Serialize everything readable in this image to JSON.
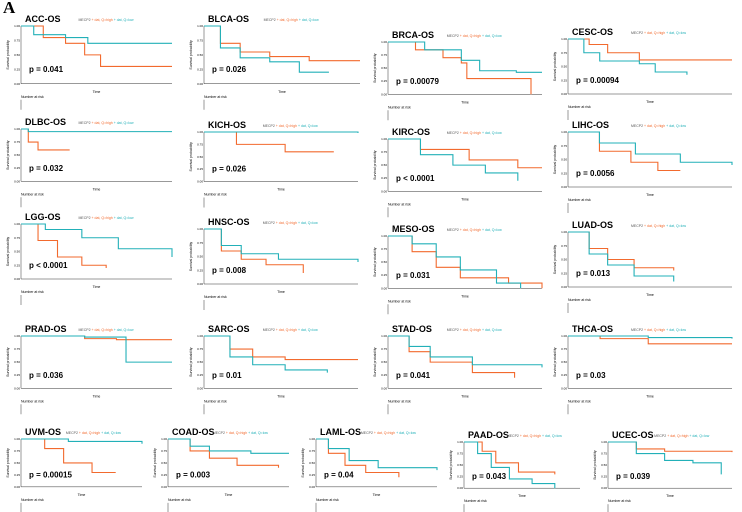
{
  "figure_label": "A",
  "colors": {
    "high": "#f26a2e",
    "low": "#22b0b8"
  },
  "legend": {
    "gene": "MECP2",
    "high": "dat, Q=high",
    "low": "dat, Q=low"
  },
  "axis": {
    "ylabel": "Survival probability",
    "xlabel": "Time",
    "risk_title": "Number at risk",
    "yticks": [
      "0.00",
      "0.25",
      "0.50",
      "0.75",
      "1.00"
    ]
  },
  "chart_data": [
    {
      "type": "line",
      "title": "ACC-OS",
      "p": "p = 0.041",
      "xmax": 4745,
      "high": [
        [
          0,
          1
        ],
        [
          700,
          0.8
        ],
        [
          1400,
          0.7
        ],
        [
          2000,
          0.5
        ],
        [
          2500,
          0.3
        ],
        [
          4745,
          0.3
        ]
      ],
      "low": [
        [
          0,
          1
        ],
        [
          400,
          0.85
        ],
        [
          1400,
          0.8
        ],
        [
          2100,
          0.7
        ],
        [
          4745,
          0.7
        ]
      ]
    },
    {
      "type": "line",
      "title": "BLCA-OS",
      "p": "p = 0.026",
      "xmax": 4745,
      "high": [
        [
          0,
          1
        ],
        [
          500,
          0.7
        ],
        [
          1100,
          0.55
        ],
        [
          2000,
          0.47
        ],
        [
          3200,
          0.4
        ],
        [
          4745,
          0.4
        ]
      ],
      "low": [
        [
          0,
          1
        ],
        [
          500,
          0.62
        ],
        [
          1100,
          0.45
        ],
        [
          2000,
          0.38
        ],
        [
          2900,
          0.2
        ],
        [
          3800,
          0.2
        ]
      ]
    },
    {
      "type": "line",
      "title": "BRCA-OS",
      "p": "p = 0.00079",
      "xmax": 8400,
      "high": [
        [
          0,
          1
        ],
        [
          1500,
          0.85
        ],
        [
          3000,
          0.7
        ],
        [
          4000,
          0.6
        ],
        [
          4300,
          0.3
        ],
        [
          7800,
          0.3
        ],
        [
          7800,
          0
        ]
      ],
      "low": [
        [
          0,
          1
        ],
        [
          2000,
          0.85
        ],
        [
          4000,
          0.65
        ],
        [
          5000,
          0.45
        ],
        [
          7000,
          0.42
        ],
        [
          8400,
          0.42
        ]
      ]
    },
    {
      "type": "line",
      "title": "CESC-OS",
      "p": "p = 0.00094",
      "xmax": 6205,
      "high": [
        [
          0,
          1
        ],
        [
          800,
          0.9
        ],
        [
          1500,
          0.75
        ],
        [
          2700,
          0.62
        ],
        [
          6205,
          0.62
        ]
      ],
      "low": [
        [
          0,
          1
        ],
        [
          600,
          0.75
        ],
        [
          1200,
          0.6
        ],
        [
          2700,
          0.55
        ],
        [
          3300,
          0.4
        ],
        [
          4500,
          0.35
        ]
      ]
    },
    {
      "type": "line",
      "title": "DLBC-OS",
      "p": "p = 0.032",
      "xmax": 6205,
      "high": [
        [
          0,
          1
        ],
        [
          300,
          0.75
        ],
        [
          700,
          0.6
        ],
        [
          2000,
          0.6
        ]
      ],
      "low": [
        [
          0,
          1
        ],
        [
          300,
          0.95
        ],
        [
          6205,
          0.95
        ]
      ]
    },
    {
      "type": "line",
      "title": "KICH-OS",
      "p": "p = 0.026",
      "xmax": 4745,
      "high": [
        [
          0,
          1
        ],
        [
          1000,
          0.75
        ],
        [
          2500,
          0.6
        ],
        [
          4000,
          0.6
        ]
      ],
      "low": [
        [
          0,
          1
        ],
        [
          4745,
          0.98
        ]
      ]
    },
    {
      "type": "line",
      "title": "KIRC-OS",
      "p": "p < 0.0001",
      "xmax": 4745,
      "high": [
        [
          0,
          1
        ],
        [
          1000,
          0.8
        ],
        [
          2500,
          0.6
        ],
        [
          4000,
          0.45
        ],
        [
          4745,
          0.45
        ]
      ],
      "low": [
        [
          0,
          1
        ],
        [
          1000,
          0.7
        ],
        [
          2000,
          0.5
        ],
        [
          3000,
          0.35
        ],
        [
          4000,
          0.2
        ]
      ]
    },
    {
      "type": "line",
      "title": "LIHC-OS",
      "p": "p = 0.0056",
      "xmax": 3650,
      "high": [
        [
          0,
          1
        ],
        [
          700,
          0.65
        ],
        [
          1400,
          0.45
        ],
        [
          2000,
          0.3
        ],
        [
          2500,
          0.3
        ]
      ],
      "low": [
        [
          0,
          1
        ],
        [
          700,
          0.8
        ],
        [
          1500,
          0.6
        ],
        [
          2500,
          0.45
        ],
        [
          3650,
          0.4
        ]
      ]
    },
    {
      "type": "line",
      "title": "LGG-OS",
      "p": "p < 0.0001",
      "xmax": 6205,
      "high": [
        [
          0,
          1
        ],
        [
          700,
          0.7
        ],
        [
          1500,
          0.4
        ],
        [
          2500,
          0.25
        ],
        [
          3500,
          0.2
        ]
      ],
      "low": [
        [
          0,
          1
        ],
        [
          1000,
          0.9
        ],
        [
          2500,
          0.75
        ],
        [
          4000,
          0.55
        ],
        [
          6205,
          0.4
        ]
      ]
    },
    {
      "type": "line",
      "title": "HNSC-OS",
      "p": "p = 0.008",
      "xmax": 6205,
      "high": [
        [
          0,
          1
        ],
        [
          700,
          0.6
        ],
        [
          1500,
          0.45
        ],
        [
          2500,
          0.35
        ],
        [
          4000,
          0.2
        ]
      ],
      "low": [
        [
          0,
          1
        ],
        [
          700,
          0.7
        ],
        [
          1500,
          0.55
        ],
        [
          3000,
          0.45
        ],
        [
          6205,
          0.4
        ]
      ]
    },
    {
      "type": "line",
      "title": "MESO-OS",
      "p": "p = 0.031",
      "xmax": 2555,
      "high": [
        [
          0,
          1
        ],
        [
          400,
          0.7
        ],
        [
          800,
          0.4
        ],
        [
          1200,
          0.2
        ],
        [
          2000,
          0.1
        ],
        [
          2555,
          0
        ]
      ],
      "low": [
        [
          0,
          1
        ],
        [
          400,
          0.85
        ],
        [
          800,
          0.6
        ],
        [
          1200,
          0.35
        ],
        [
          1800,
          0.1
        ],
        [
          2200,
          0
        ]
      ]
    },
    {
      "type": "line",
      "title": "LUAD-OS",
      "p": "p = 0.013",
      "xmax": 6205,
      "high": [
        [
          0,
          1
        ],
        [
          800,
          0.7
        ],
        [
          1500,
          0.5
        ],
        [
          2500,
          0.35
        ],
        [
          4000,
          0.3
        ]
      ],
      "low": [
        [
          0,
          1
        ],
        [
          800,
          0.6
        ],
        [
          1500,
          0.4
        ],
        [
          2500,
          0.2
        ],
        [
          4000,
          0.1
        ]
      ]
    },
    {
      "type": "line",
      "title": "PRAD-OS",
      "p": "p = 0.036",
      "xmax": 4745,
      "high": [
        [
          0,
          1
        ],
        [
          2000,
          0.95
        ],
        [
          3000,
          0.93
        ],
        [
          4745,
          0.93
        ]
      ],
      "low": [
        [
          0,
          1
        ],
        [
          2000,
          0.98
        ],
        [
          3300,
          0.95
        ],
        [
          3300,
          0.5
        ],
        [
          4745,
          0.5
        ]
      ]
    },
    {
      "type": "line",
      "title": "SARC-OS",
      "p": "p = 0.01",
      "xmax": 4745,
      "high": [
        [
          0,
          1
        ],
        [
          800,
          0.75
        ],
        [
          1500,
          0.6
        ],
        [
          2500,
          0.55
        ],
        [
          4745,
          0.55
        ]
      ],
      "low": [
        [
          0,
          1
        ],
        [
          800,
          0.6
        ],
        [
          1500,
          0.45
        ],
        [
          2500,
          0.35
        ],
        [
          3800,
          0.3
        ]
      ]
    },
    {
      "type": "line",
      "title": "STAD-OS",
      "p": "p = 0.041",
      "xmax": 3650,
      "high": [
        [
          0,
          1
        ],
        [
          500,
          0.7
        ],
        [
          1000,
          0.5
        ],
        [
          2000,
          0.3
        ],
        [
          3000,
          0.2
        ]
      ],
      "low": [
        [
          0,
          1
        ],
        [
          500,
          0.8
        ],
        [
          1000,
          0.6
        ],
        [
          2000,
          0.45
        ],
        [
          3650,
          0.4
        ]
      ]
    },
    {
      "type": "line",
      "title": "THCA-OS",
      "p": "p = 0.03",
      "xmax": 5110,
      "high": [
        [
          0,
          1
        ],
        [
          1000,
          0.95
        ],
        [
          2500,
          0.85
        ],
        [
          5110,
          0.85
        ]
      ],
      "low": [
        [
          0,
          1
        ],
        [
          2500,
          0.97
        ],
        [
          5110,
          0.95
        ]
      ]
    },
    {
      "type": "line",
      "title": "UVM-OS",
      "p": "p = 0.00015",
      "xmax": 2555,
      "high": [
        [
          0,
          1
        ],
        [
          500,
          0.8
        ],
        [
          900,
          0.5
        ],
        [
          1500,
          0.3
        ],
        [
          2000,
          0.3
        ]
      ],
      "low": [
        [
          0,
          1
        ],
        [
          1000,
          0.95
        ],
        [
          2555,
          0.9
        ]
      ]
    },
    {
      "type": "line",
      "title": "COAD-OS",
      "p": "p = 0.003",
      "xmax": 4380,
      "high": [
        [
          0,
          1
        ],
        [
          800,
          0.75
        ],
        [
          1500,
          0.6
        ],
        [
          2500,
          0.45
        ],
        [
          4000,
          0.4
        ]
      ],
      "low": [
        [
          0,
          1
        ],
        [
          800,
          0.85
        ],
        [
          1500,
          0.75
        ],
        [
          3000,
          0.7
        ],
        [
          4380,
          0.7
        ]
      ]
    },
    {
      "type": "line",
      "title": "LAML-OS",
      "p": "p = 0.04",
      "xmax": 2920,
      "high": [
        [
          0,
          1
        ],
        [
          300,
          0.7
        ],
        [
          700,
          0.45
        ],
        [
          1200,
          0.3
        ],
        [
          2000,
          0.2
        ]
      ],
      "low": [
        [
          0,
          1
        ],
        [
          300,
          0.8
        ],
        [
          800,
          0.55
        ],
        [
          1500,
          0.4
        ],
        [
          2920,
          0.35
        ]
      ]
    },
    {
      "type": "line",
      "title": "PAAD-OS",
      "p": "p = 0.043",
      "xmax": 2555,
      "high": [
        [
          0,
          1
        ],
        [
          400,
          0.8
        ],
        [
          700,
          0.55
        ],
        [
          1200,
          0.35
        ],
        [
          2000,
          0.3
        ]
      ],
      "low": [
        [
          0,
          1
        ],
        [
          300,
          0.75
        ],
        [
          600,
          0.45
        ],
        [
          1000,
          0.2
        ],
        [
          1500,
          0.1
        ],
        [
          2000,
          0
        ]
      ]
    },
    {
      "type": "line",
      "title": "UCEC-OS",
      "p": "p = 0.039",
      "xmax": 4380,
      "high": [
        [
          0,
          1
        ],
        [
          1000,
          0.85
        ],
        [
          2000,
          0.8
        ],
        [
          4380,
          0.78
        ]
      ],
      "low": [
        [
          0,
          1
        ],
        [
          1000,
          0.75
        ],
        [
          2000,
          0.6
        ],
        [
          3000,
          0.55
        ],
        [
          4000,
          0.3
        ]
      ]
    }
  ]
}
